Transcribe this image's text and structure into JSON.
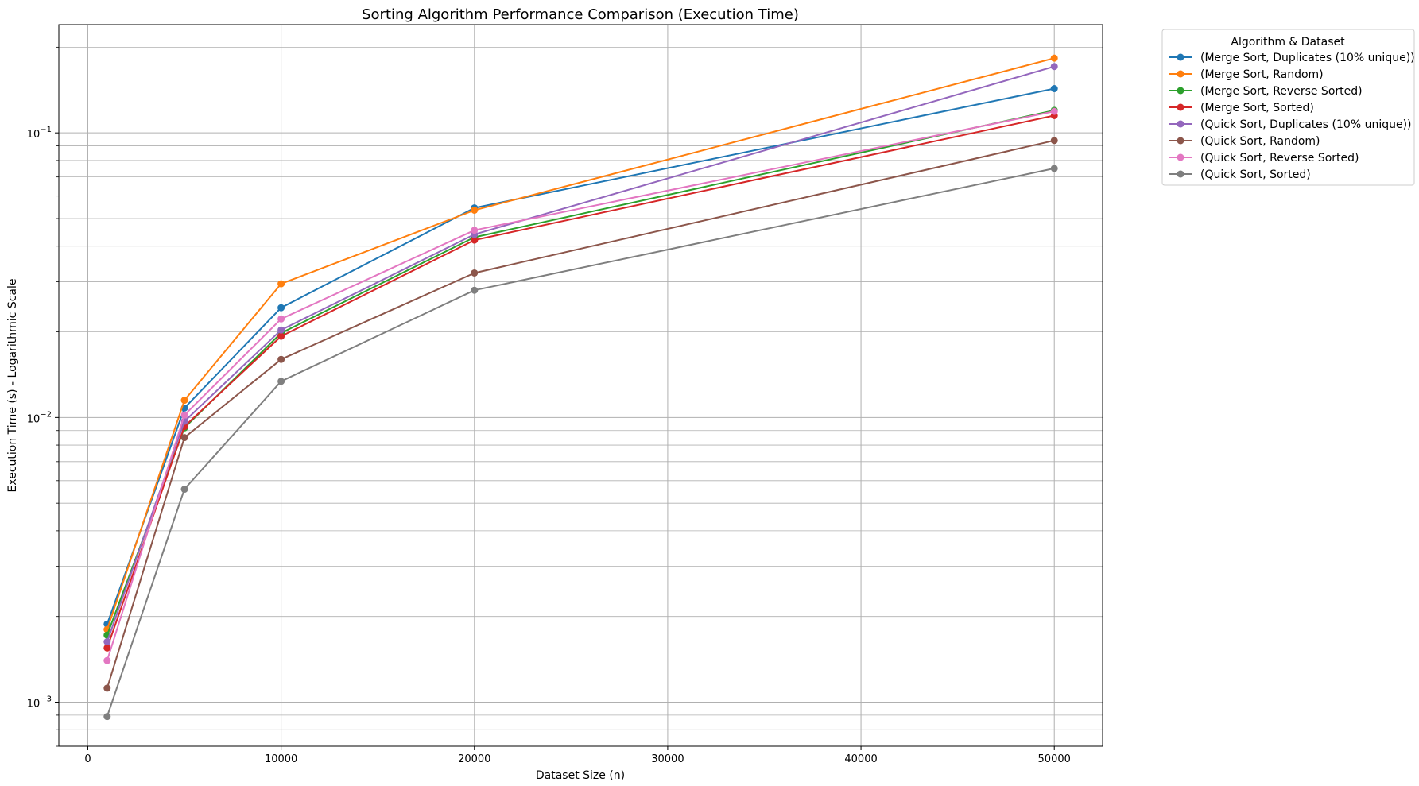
{
  "chart_data": {
    "type": "line",
    "title": "Sorting Algorithm Performance Comparison (Execution Time)",
    "xlabel": "Dataset Size (n)",
    "ylabel": "Execution Time (s) - Logarithmic Scale",
    "y_scale": "log",
    "xlim": [
      -1500,
      52500
    ],
    "ylim": [
      0.0007,
      0.24
    ],
    "grid": true,
    "legend_title": "Algorithm & Dataset",
    "legend_placement": "outside top-right",
    "x_ticks": [
      0,
      10000,
      20000,
      30000,
      40000,
      50000
    ],
    "x_tick_labels": [
      "0",
      "10000",
      "20000",
      "30000",
      "40000",
      "50000"
    ],
    "y_major_ticks": [
      0.001,
      0.01,
      0.1
    ],
    "y_tick_base": "10",
    "y_tick_exponents": [
      "−3",
      "−2",
      "−1"
    ],
    "x": [
      1000,
      5000,
      10000,
      20000,
      50000
    ],
    "series": [
      {
        "name": "(Merge Sort, Duplicates (10% unique))",
        "color": "#1f77b4",
        "values": [
          0.00188,
          0.0108,
          0.0243,
          0.0545,
          0.143
        ]
      },
      {
        "name": "(Merge Sort, Random)",
        "color": "#ff7f0e",
        "values": [
          0.0018,
          0.0115,
          0.0295,
          0.0535,
          0.183
        ]
      },
      {
        "name": "(Merge Sort, Reverse Sorted)",
        "color": "#2ca02c",
        "values": [
          0.00172,
          0.0092,
          0.0198,
          0.043,
          0.12
        ]
      },
      {
        "name": "(Merge Sort, Sorted)",
        "color": "#d62728",
        "values": [
          0.00155,
          0.0093,
          0.0193,
          0.042,
          0.115
        ]
      },
      {
        "name": "(Quick Sort, Duplicates (10% unique))",
        "color": "#9467bd",
        "values": [
          0.00163,
          0.0097,
          0.0203,
          0.044,
          0.171
        ]
      },
      {
        "name": "(Quick Sort, Random)",
        "color": "#8c564b",
        "values": [
          0.00112,
          0.0085,
          0.016,
          0.0322,
          0.094
        ]
      },
      {
        "name": "(Quick Sort, Reverse Sorted)",
        "color": "#e377c2",
        "values": [
          0.0014,
          0.0102,
          0.0222,
          0.0455,
          0.119
        ]
      },
      {
        "name": "(Quick Sort, Sorted)",
        "color": "#7f7f7f",
        "values": [
          0.00089,
          0.0056,
          0.0134,
          0.028,
          0.075
        ]
      }
    ]
  }
}
